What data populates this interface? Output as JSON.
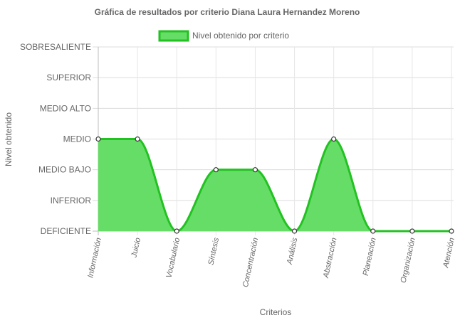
{
  "chart_data": {
    "type": "area",
    "title": "Gráfica de resultados por criterio Diana Laura Hernandez Moreno",
    "xlabel": "Criterios",
    "ylabel": "Nivel obtenido",
    "legend": {
      "position": "top-center"
    },
    "y_levels": [
      "DEFICIENTE",
      "INFERIOR",
      "MEDIO BAJO",
      "MEDIO",
      "MEDIO ALTO",
      "SUPERIOR",
      "SOBRESALIENTE"
    ],
    "ylim": [
      0,
      6
    ],
    "grid": true,
    "categories": [
      "Información",
      "Juicio",
      "Vocabulario",
      "Síntesis",
      "Concentración",
      "Análisis",
      "Abstracción",
      "Planeación",
      "Organización",
      "Atención"
    ],
    "series": [
      {
        "name": "Nivel obtenido por criterio",
        "values": [
          3,
          3,
          0,
          2,
          2,
          0,
          3,
          0,
          0,
          0
        ],
        "color": "#22c222",
        "fill": "#66dd66"
      }
    ]
  }
}
